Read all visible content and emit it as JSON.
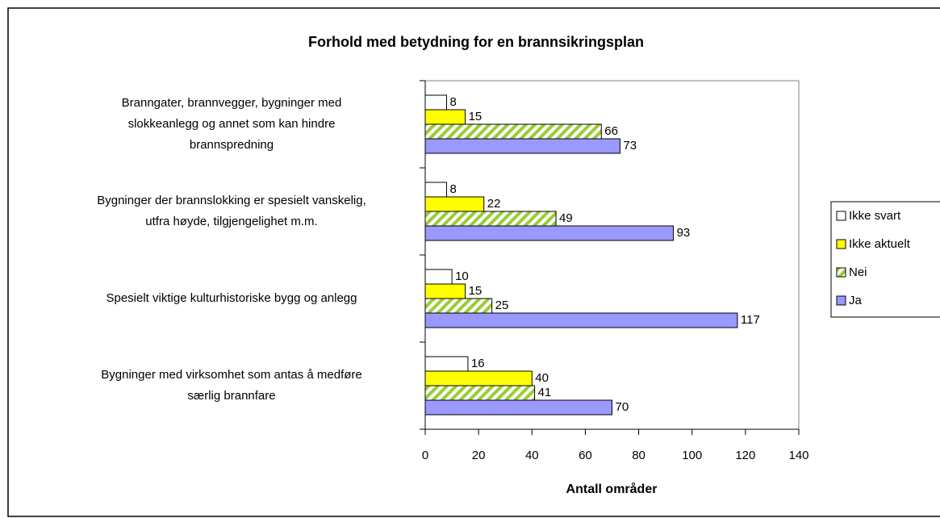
{
  "chart_data": {
    "type": "bar",
    "orientation": "horizontal",
    "title": "Forhold med betydning for en brannsikringsplan",
    "xlabel": "Antall områder",
    "categories": [
      [
        "Branngater, brannvegger, bygninger med",
        "slokkeanlegg og annet som kan hindre",
        "brannspredning"
      ],
      [
        "Bygninger der brannslokking er spesielt vanskelig,",
        "utfra høyde, tilgjengelighet m.m."
      ],
      [
        "Spesielt viktige kulturhistoriske bygg og anlegg"
      ],
      [
        "Bygninger med virksomhet som antas å medføre",
        "særlig brannfare"
      ]
    ],
    "series": [
      {
        "name": "Ikke svart",
        "color": "#ffffff",
        "values": [
          8,
          8,
          10,
          16
        ]
      },
      {
        "name": "Ikke aktuelt",
        "color": "#ffff00",
        "values": [
          15,
          22,
          15,
          40
        ]
      },
      {
        "name": "Nei",
        "color": "#99cc33",
        "pattern": "hatch",
        "values": [
          66,
          49,
          25,
          41
        ]
      },
      {
        "name": "Ja",
        "color": "#9999ff",
        "values": [
          73,
          93,
          117,
          70
        ]
      }
    ],
    "xlim": [
      0,
      140
    ],
    "xticks": [
      0,
      20,
      40,
      60,
      80,
      100,
      120,
      140
    ],
    "grid": false,
    "legend": "right"
  }
}
